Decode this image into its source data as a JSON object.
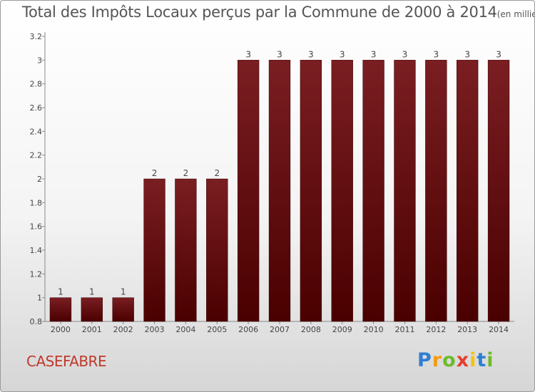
{
  "chart_data": {
    "type": "bar",
    "title": "Total des Impôts Locaux perçus par la Commune de 2000 à 2014",
    "title_unit": "(en milliers d'€)",
    "categories": [
      "2000",
      "2001",
      "2002",
      "2003",
      "2004",
      "2005",
      "2006",
      "2007",
      "2008",
      "2009",
      "2010",
      "2011",
      "2012",
      "2013",
      "2014"
    ],
    "values": [
      1,
      1,
      1,
      2,
      2,
      2,
      3,
      3,
      3,
      3,
      3,
      3,
      3,
      3,
      3
    ],
    "data_labels": [
      "1",
      "1",
      "1",
      "2",
      "2",
      "2",
      "3",
      "3",
      "3",
      "3",
      "3",
      "3",
      "3",
      "3",
      "3"
    ],
    "ylim": [
      0.8,
      3.2
    ],
    "yticks": [
      0.8,
      1,
      1.2,
      1.4,
      1.6,
      1.8,
      2,
      2.2,
      2.4,
      2.6,
      2.8,
      3,
      3.2
    ],
    "ytick_labels": [
      "0.8",
      "1",
      "1.2",
      "1.4",
      "1.6",
      "1.8",
      "2",
      "2.2",
      "2.4",
      "2.6",
      "2.8",
      "3",
      "3.2"
    ],
    "grid": false,
    "bar_color": "#7a1e22",
    "bar_color_dark": "#4a0000"
  },
  "footer": {
    "commune": "CASEFABRE",
    "brand": [
      "P",
      "r",
      "o",
      "x",
      "i",
      "t",
      "i"
    ]
  }
}
